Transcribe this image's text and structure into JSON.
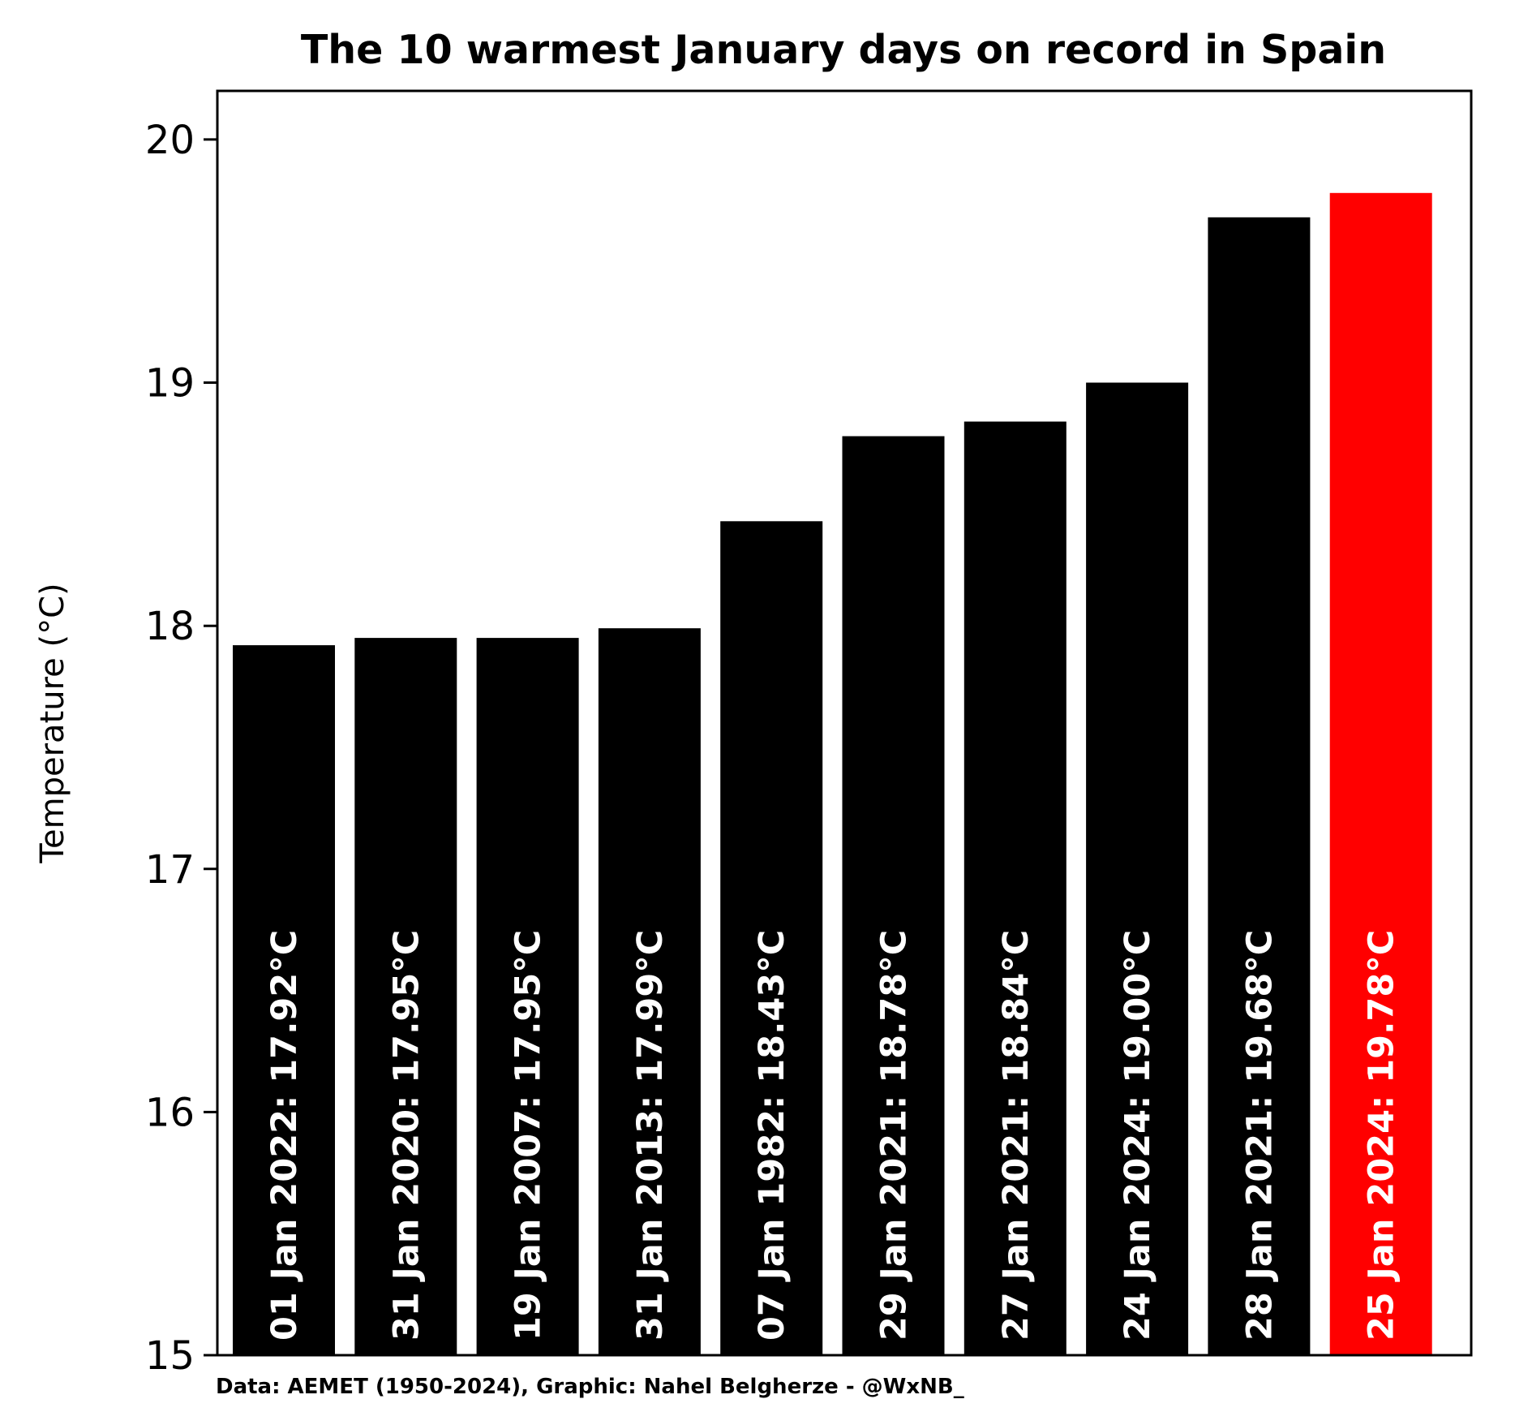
{
  "chart_data": {
    "type": "bar",
    "title": "The 10 warmest January days on record in Spain",
    "xlabel": "",
    "ylabel": "Temperature (°C)",
    "ylim": [
      15,
      20.2
    ],
    "yticks": [
      "15",
      "16",
      "17",
      "18",
      "19",
      "20"
    ],
    "grid": false,
    "legend": "none",
    "categories": [
      "01 Jan 2022",
      "31 Jan 2020",
      "19 Jan 2007",
      "31 Jan 2013",
      "07 Jan 1982",
      "29 Jan 2021",
      "27 Jan 2021",
      "24 Jan 2024",
      "28 Jan 2021",
      "25 Jan 2024"
    ],
    "values": [
      17.92,
      17.95,
      17.95,
      17.99,
      18.43,
      18.78,
      18.84,
      19.0,
      19.68,
      19.78
    ],
    "labels": [
      "01 Jan 2022: 17.92°C",
      "31 Jan 2020: 17.95°C",
      "19 Jan 2007: 17.95°C",
      "31 Jan 2013: 17.99°C",
      "07 Jan 1982: 18.43°C",
      "29 Jan 2021: 18.78°C",
      "27 Jan 2021: 18.84°C",
      "24 Jan 2024: 19.00°C",
      "28 Jan 2021: 19.68°C",
      "25 Jan 2024: 19.78°C"
    ],
    "bar_colors": [
      "#000000",
      "#000000",
      "#000000",
      "#000000",
      "#000000",
      "#000000",
      "#000000",
      "#000000",
      "#000000",
      "#ff0000"
    ],
    "source": "Data: AEMET (1950-2024), Graphic: Nahel Belgherze - @WxNB_"
  }
}
